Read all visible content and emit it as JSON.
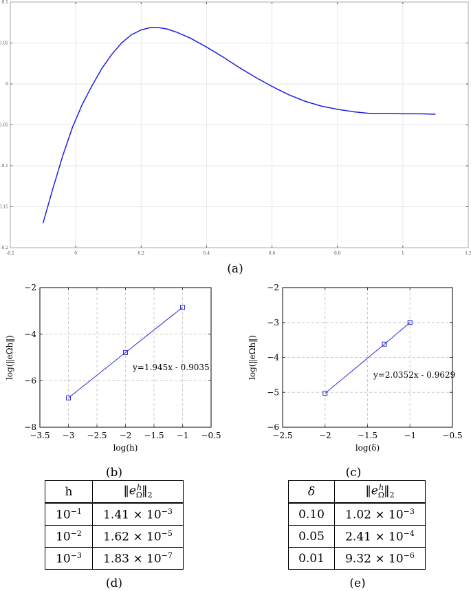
{
  "captions": {
    "a": "(a)",
    "b": "(b)",
    "c": "(c)",
    "d": "(d)",
    "e": "(e)"
  },
  "chart_data": [
    {
      "id": "a",
      "type": "line",
      "xlim": [
        -0.2,
        1.2
      ],
      "ylim": [
        -0.2,
        0.1
      ],
      "xticks": [
        "-0.2",
        "0",
        "0.2",
        "0.4",
        "0.6",
        "0.8",
        "1",
        "1.2"
      ],
      "yticks": [
        "0.1",
        "0.05",
        "0",
        "-0.05",
        "-0.1",
        "-0.15",
        "-0.2"
      ],
      "grid": true,
      "color": "#1f1fe0",
      "series": [
        {
          "x": [
            -0.1,
            -0.07,
            -0.04,
            -0.01,
            0.02,
            0.05,
            0.08,
            0.11,
            0.14,
            0.17,
            0.2,
            0.23,
            0.25,
            0.28,
            0.31,
            0.35,
            0.4,
            0.45,
            0.5,
            0.55,
            0.6,
            0.65,
            0.7,
            0.75,
            0.8,
            0.85,
            0.9,
            0.95,
            1.0,
            1.05,
            1.1
          ],
          "y": [
            -0.17,
            -0.128,
            -0.088,
            -0.053,
            -0.025,
            -0.002,
            0.019,
            0.036,
            0.05,
            0.06,
            0.066,
            0.069,
            0.069,
            0.067,
            0.063,
            0.056,
            0.045,
            0.033,
            0.02,
            0.008,
            -0.003,
            -0.013,
            -0.021,
            -0.027,
            -0.031,
            -0.034,
            -0.036,
            -0.036,
            -0.0365,
            -0.0365,
            -0.037
          ]
        }
      ]
    },
    {
      "id": "b",
      "type": "line",
      "xlim": [
        -3.5,
        -0.5
      ],
      "ylim": [
        -8,
        -2
      ],
      "xticks": [
        "−3.5",
        "−3",
        "−2.5",
        "−2",
        "−1.5",
        "−1",
        "−0.5"
      ],
      "yticks": [
        "−2",
        "−4",
        "−6",
        "−8"
      ],
      "xlabel": "log(h)",
      "ylabel": "log(‖eΩh‖)",
      "grid": true,
      "color": "#2b2bd8",
      "annotation": "y=1.945x - 0.9035",
      "series": [
        {
          "x": [
            -3,
            -2,
            -1
          ],
          "y": [
            -6.74,
            -4.79,
            -2.85
          ]
        }
      ]
    },
    {
      "id": "c",
      "type": "line",
      "xlim": [
        -2.5,
        -0.5
      ],
      "ylim": [
        -6,
        -2
      ],
      "xticks": [
        "−2.5",
        "−2",
        "−1.5",
        "−1",
        "−0.5"
      ],
      "yticks": [
        "−2",
        "−3",
        "−4",
        "−5",
        "−6"
      ],
      "xlabel": "log(δ)",
      "ylabel": "log(‖eΩh‖)",
      "grid": true,
      "color": "#2b2bd8",
      "annotation": "y=2.0352x - 0.9629",
      "series": [
        {
          "x": [
            -2,
            -1.301,
            -1
          ],
          "y": [
            -5.03,
            -3.62,
            -3.0
          ]
        }
      ]
    },
    {
      "id": "d",
      "type": "table",
      "header": [
        "h",
        "‖eΩh‖₂"
      ],
      "rows": [
        {
          "base": "10",
          "exp": "−1",
          "mant": "1.41",
          "mexp": "−3"
        },
        {
          "base": "10",
          "exp": "−2",
          "mant": "1.62",
          "mexp": "−5"
        },
        {
          "base": "10",
          "exp": "−3",
          "mant": "1.83",
          "mexp": "−7"
        }
      ]
    },
    {
      "id": "e",
      "type": "table",
      "header": [
        "δ",
        "‖eΩh‖₂"
      ],
      "rows": [
        {
          "val": "0.10",
          "mant": "1.02",
          "mexp": "−3"
        },
        {
          "val": "0.05",
          "mant": "2.41",
          "mexp": "−4"
        },
        {
          "val": "0.01",
          "mant": "9.32",
          "mexp": "−6"
        }
      ]
    }
  ]
}
